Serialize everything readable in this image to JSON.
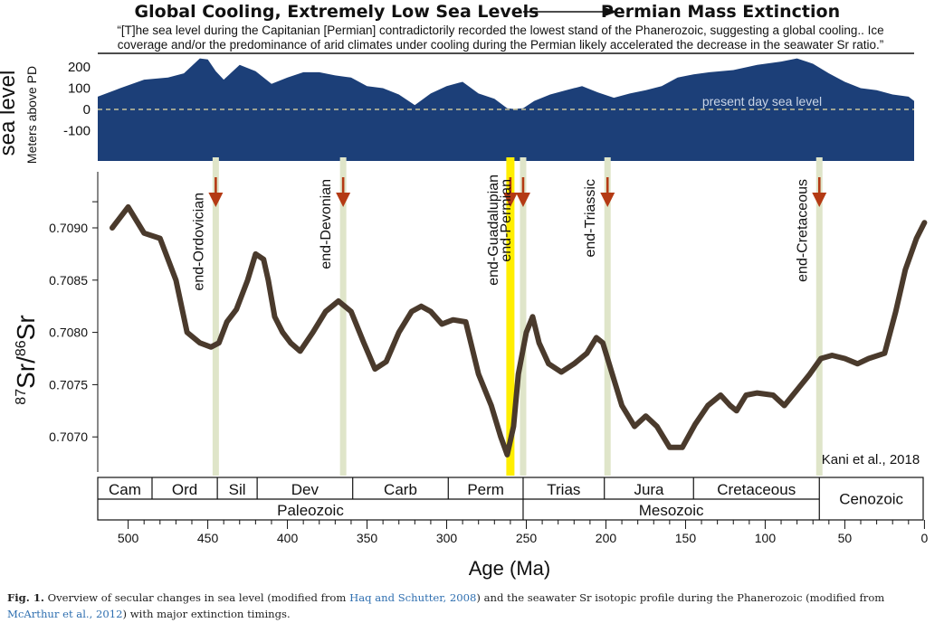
{
  "header": {
    "left_title": "Global Cooling, Extremely Low Sea Levels",
    "right_title": "Permian Mass Extinction",
    "quote_line1": "“[T]he sea level during the Capitanian [Permian] contradictorily recorded the lowest stand of the Phanerozoic, suggesting a global cooling.. Ice",
    "quote_line2": "coverage and/or the predominance of arid climates under cooling during the Permian likely accelerated the decrease in the seawater Sr ratio.”"
  },
  "chart_data": [
    {
      "type": "area",
      "panel": "sea level",
      "side_label": "sea level",
      "ylabel": "Meters above PD",
      "yticks": [
        200,
        100,
        0,
        -100
      ],
      "ylim": [
        -230,
        290
      ],
      "xlim": [
        520,
        0
      ],
      "reference_line": {
        "value": 0,
        "label": "present day sea level",
        "style": "dashed"
      },
      "fill_color": "#1c3f78",
      "x": [
        520,
        505,
        490,
        475,
        465,
        455,
        450,
        445,
        440,
        430,
        420,
        410,
        400,
        390,
        380,
        370,
        360,
        350,
        340,
        330,
        320,
        310,
        300,
        290,
        280,
        270,
        262,
        258,
        252,
        245,
        235,
        225,
        215,
        205,
        195,
        185,
        175,
        165,
        155,
        145,
        135,
        120,
        105,
        90,
        80,
        70,
        60,
        50,
        40,
        30,
        20,
        10,
        5,
        0
      ],
      "y": [
        60,
        100,
        140,
        150,
        170,
        240,
        235,
        180,
        140,
        210,
        180,
        120,
        150,
        175,
        175,
        160,
        150,
        110,
        100,
        70,
        20,
        75,
        110,
        130,
        75,
        50,
        5,
        2,
        5,
        40,
        70,
        90,
        110,
        80,
        55,
        75,
        90,
        110,
        150,
        165,
        175,
        185,
        210,
        225,
        240,
        215,
        170,
        130,
        100,
        90,
        70,
        60,
        40,
        10
      ]
    },
    {
      "type": "line",
      "panel": "Sr isotope",
      "ylabel": "87Sr/86Sr",
      "ylabel_sup1": "87",
      "ylabel_main1": "Sr/",
      "ylabel_sup2": "86",
      "ylabel_main2": "Sr",
      "xlabel": "Age (Ma)",
      "xlim": [
        520,
        0
      ],
      "ylim": [
        0.70665,
        0.7095
      ],
      "xticks": [
        500,
        450,
        400,
        350,
        300,
        250,
        200,
        150,
        100,
        50,
        0
      ],
      "yticks": [
        "0.7090",
        "0.7085",
        "0.7080",
        "0.7075",
        "0.7070"
      ],
      "ytick_values": [
        0.709,
        0.7085,
        0.708,
        0.7075,
        0.707
      ],
      "line_color": "#4a3a2c",
      "x": [
        510,
        500,
        490,
        480,
        470,
        463,
        455,
        448,
        443,
        438,
        432,
        425,
        420,
        415,
        412,
        408,
        403,
        398,
        392,
        384,
        376,
        368,
        360,
        352,
        345,
        338,
        330,
        322,
        316,
        310,
        303,
        296,
        288,
        280,
        272,
        266,
        262,
        258,
        255,
        250,
        246,
        242,
        236,
        228,
        220,
        212,
        206,
        202,
        196,
        190,
        182,
        175,
        168,
        160,
        152,
        144,
        136,
        128,
        122,
        118,
        112,
        105,
        95,
        88,
        80,
        72,
        65,
        58,
        50,
        42,
        35,
        25,
        18,
        12,
        5,
        0
      ],
      "y": [
        0.709,
        0.7092,
        0.70895,
        0.7089,
        0.7085,
        0.708,
        0.7079,
        0.70786,
        0.7079,
        0.7081,
        0.70822,
        0.7085,
        0.70875,
        0.7087,
        0.7085,
        0.70815,
        0.708,
        0.7079,
        0.70782,
        0.708,
        0.7082,
        0.7083,
        0.7082,
        0.7079,
        0.70765,
        0.70772,
        0.708,
        0.7082,
        0.70825,
        0.7082,
        0.70808,
        0.70812,
        0.7081,
        0.7076,
        0.7073,
        0.707,
        0.70683,
        0.7071,
        0.7076,
        0.708,
        0.70815,
        0.7079,
        0.7077,
        0.70762,
        0.7077,
        0.7078,
        0.70795,
        0.7079,
        0.7076,
        0.7073,
        0.7071,
        0.7072,
        0.7071,
        0.7069,
        0.7069,
        0.70712,
        0.7073,
        0.7074,
        0.7073,
        0.70725,
        0.7074,
        0.70742,
        0.7074,
        0.7073,
        0.70745,
        0.7076,
        0.70775,
        0.70778,
        0.70775,
        0.7077,
        0.70775,
        0.7078,
        0.7082,
        0.7086,
        0.7089,
        0.70905
      ]
    }
  ],
  "extinctions": [
    {
      "label": "end-Ordovician",
      "age": 445,
      "highlight": false
    },
    {
      "label": "end-Devonian",
      "age": 365,
      "highlight": false
    },
    {
      "label": "end-Guadalupian",
      "age": 260,
      "highlight": true
    },
    {
      "label": "end-Permian",
      "age": 252,
      "highlight": false
    },
    {
      "label": "end-Triassic",
      "age": 199,
      "highlight": false
    },
    {
      "label": "end-Cretaceous",
      "age": 66,
      "highlight": false
    }
  ],
  "colors": {
    "extinction_band": "#dfe5c9",
    "guadalupian_band": "#ffee00",
    "arrow": "#b43a14",
    "sea_fill": "#1c3f78",
    "sea_reference": "#c8c39a"
  },
  "periods": [
    {
      "label": "Cam",
      "start": 520,
      "end": 485
    },
    {
      "label": "Ord",
      "start": 485,
      "end": 444
    },
    {
      "label": "Sil",
      "start": 444,
      "end": 419
    },
    {
      "label": "Dev",
      "start": 419,
      "end": 359
    },
    {
      "label": "Carb",
      "start": 359,
      "end": 299
    },
    {
      "label": "Perm",
      "start": 299,
      "end": 252
    },
    {
      "label": "Trias",
      "start": 252,
      "end": 201
    },
    {
      "label": "Jura",
      "start": 201,
      "end": 145
    },
    {
      "label": "Cretaceous",
      "start": 145,
      "end": 66
    }
  ],
  "eras": [
    {
      "label": "Paleozoic",
      "start": 520,
      "end": 252
    },
    {
      "label": "Mesozoic",
      "start": 252,
      "end": 66
    },
    {
      "label": "Cenozoic",
      "start": 66,
      "end": 0
    }
  ],
  "credit": "Kani et al., 2018",
  "caption": {
    "fig_no": "Fig. 1.",
    "text1": " Overview of secular changes in sea level (modified from ",
    "ref1": "Haq and Schutter, 2008",
    "text2": ") and the seawater Sr isotopic profile during the Phanerozoic (modified from",
    "ref2": "McArthur et al., 2012",
    "text3": ") with major extinction timings."
  }
}
